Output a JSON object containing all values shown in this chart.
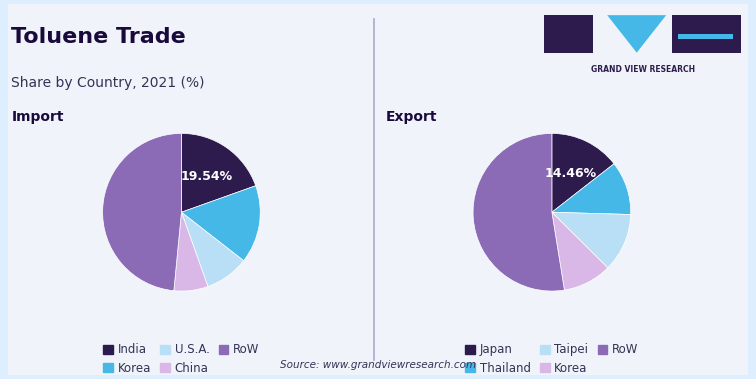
{
  "title": "Toluene Trade",
  "subtitle": "Share by Country, 2021 (%)",
  "background_color": "#ddeeff",
  "panel_color": "#f0f4fa",
  "import_label": "Import",
  "export_label": "Export",
  "source_text": "Source: www.grandviewresearch.com",
  "import_slices": [
    19.54,
    16.0,
    9.0,
    7.0,
    48.46
  ],
  "import_labels_show": [
    "19.54%",
    "",
    "",
    "",
    ""
  ],
  "import_colors": [
    "#2d1b4e",
    "#45b8e8",
    "#b8dff5",
    "#d9b8e8",
    "#8b6bb5"
  ],
  "import_legend": [
    "India",
    "Korea",
    "U.S.A.",
    "China",
    "RoW"
  ],
  "import_startangle": 90,
  "export_slices": [
    14.46,
    11.0,
    12.0,
    10.0,
    52.54
  ],
  "export_labels_show": [
    "14.46%",
    "",
    "",
    "",
    ""
  ],
  "export_colors": [
    "#2d1b4e",
    "#45b8e8",
    "#b8dff5",
    "#d9b8e8",
    "#8b6bb5"
  ],
  "export_legend": [
    "Japan",
    "Thailand",
    "Taipei",
    "Korea",
    "RoW"
  ],
  "export_startangle": 90,
  "title_color": "#1a0a3c",
  "subtitle_color": "#333355",
  "label_color": "#1a0a3c",
  "section_label_color": "#1a0a3c",
  "legend_color": "#333355",
  "source_color": "#333355"
}
